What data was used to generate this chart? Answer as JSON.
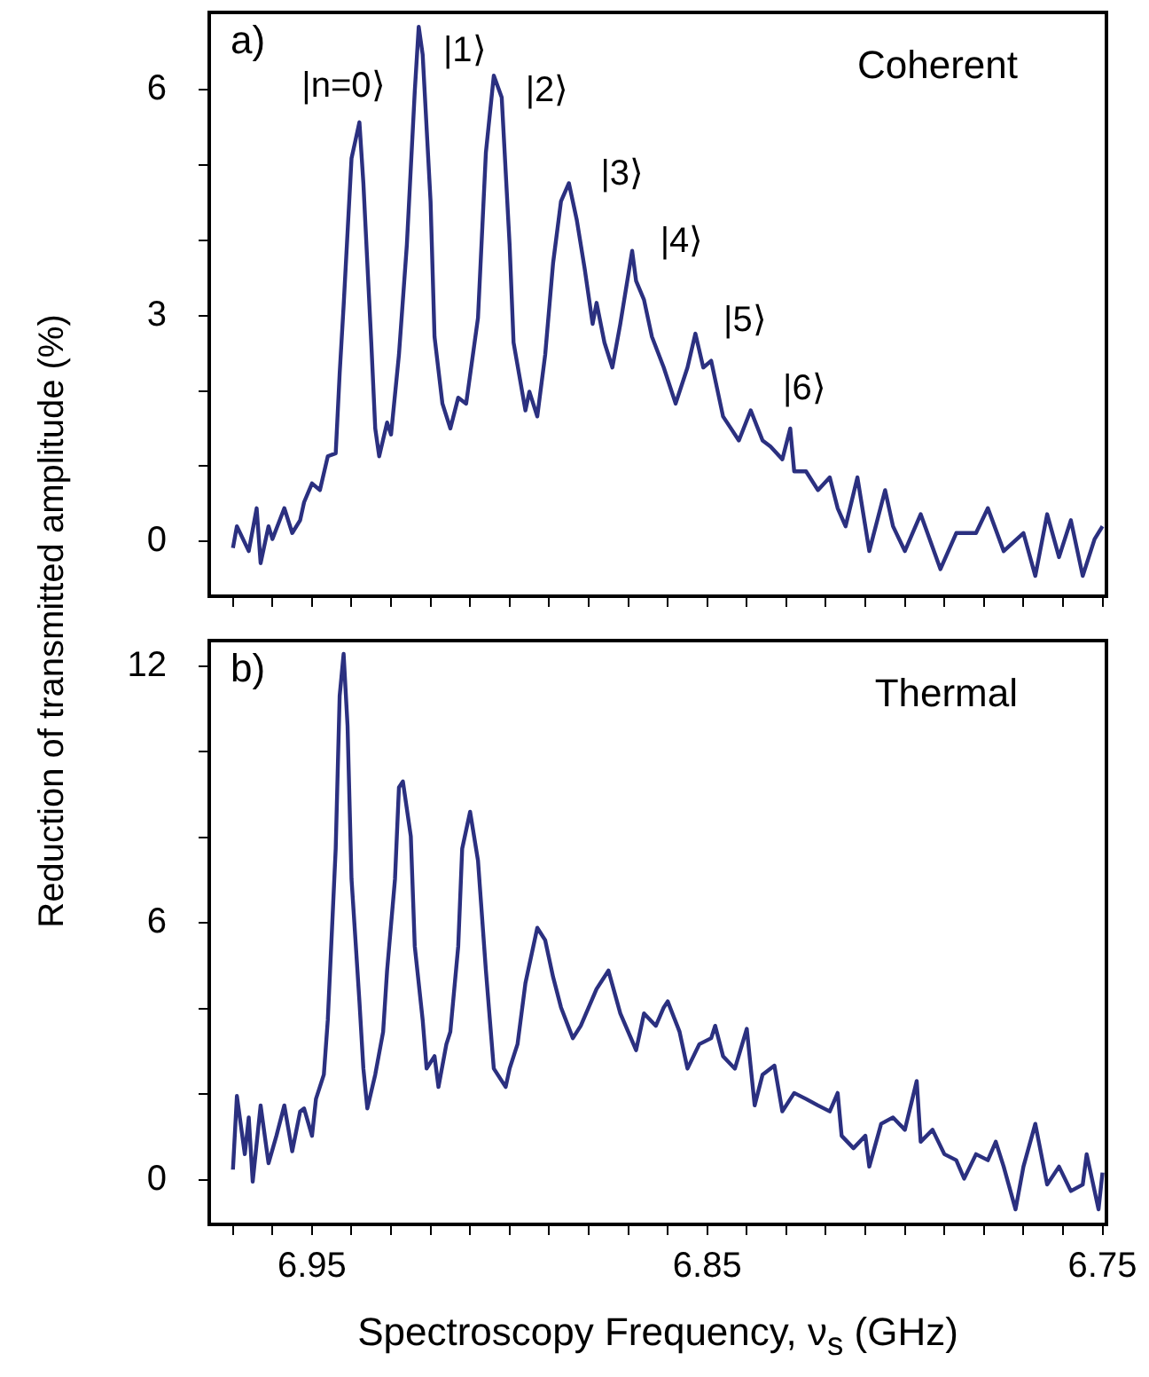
{
  "chart_data": [
    {
      "type": "line",
      "title": "Coherent",
      "ylabel": "Reduction of transmitted amplitude (%)",
      "xlim": [
        6.976,
        6.749
      ],
      "ylim": [
        -0.73,
        7.03
      ],
      "tick_labels": "y",
      "grid": false,
      "xticks": [
        {
          "value": 6.97,
          "label": null
        },
        {
          "value": 6.96,
          "label": null
        },
        {
          "value": 6.95,
          "label": null
        },
        {
          "value": 6.94,
          "label": null
        },
        {
          "value": 6.93,
          "label": null
        },
        {
          "value": 6.92,
          "label": null
        },
        {
          "value": 6.91,
          "label": null
        },
        {
          "value": 6.9,
          "label": null
        },
        {
          "value": 6.89,
          "label": null
        },
        {
          "value": 6.88,
          "label": null
        },
        {
          "value": 6.87,
          "label": null
        },
        {
          "value": 6.86,
          "label": null
        },
        {
          "value": 6.85,
          "label": null
        },
        {
          "value": 6.84,
          "label": null
        },
        {
          "value": 6.83,
          "label": null
        },
        {
          "value": 6.82,
          "label": null
        },
        {
          "value": 6.81,
          "label": null
        },
        {
          "value": 6.8,
          "label": null
        },
        {
          "value": 6.79,
          "label": null
        },
        {
          "value": 6.78,
          "label": null
        },
        {
          "value": 6.77,
          "label": null
        },
        {
          "value": 6.76,
          "label": null
        },
        {
          "value": 6.75,
          "label": null
        }
      ],
      "yticks": [
        0,
        {
          "value": 1,
          "label": null
        },
        {
          "value": 2,
          "label": null
        },
        3,
        {
          "value": 4,
          "label": null
        },
        {
          "value": 5,
          "label": null
        },
        6
      ],
      "annotations": [
        "a)",
        {
          "text": "|n=0⟩",
          "x": 6.938,
          "y": 5.57
        },
        {
          "text": "|1⟩",
          "x": 6.923,
          "y": 6.84
        },
        {
          "text": "|2⟩",
          "x": 6.904,
          "y": 6.19
        },
        {
          "text": "|3⟩",
          "x": 6.885,
          "y": 4.76
        },
        {
          "text": "|4⟩",
          "x": 6.869,
          "y": 3.86
        },
        {
          "text": "|5⟩",
          "x": 6.853,
          "y": 2.76
        },
        {
          "text": "|6⟩",
          "x": 6.829,
          "y": 1.5
        }
      ],
      "series": [
        {
          "color": "#2b3080",
          "x": [
            6.97,
            6.969,
            6.966,
            6.964,
            6.963,
            6.961,
            6.96,
            6.957,
            6.955,
            6.953,
            6.952,
            6.95,
            6.948,
            6.946,
            6.944,
            6.943,
            6.942,
            6.94,
            6.939,
            6.938,
            6.937,
            6.935,
            6.934,
            6.933,
            6.931,
            6.93,
            6.928,
            6.926,
            6.924,
            6.923,
            6.922,
            6.92,
            6.919,
            6.917,
            6.915,
            6.913,
            6.911,
            6.908,
            6.906,
            6.904,
            6.902,
            6.9,
            6.899,
            6.896,
            6.895,
            6.893,
            6.891,
            6.889,
            6.887,
            6.885,
            6.883,
            6.881,
            6.879,
            6.878,
            6.876,
            6.874,
            6.872,
            6.869,
            6.868,
            6.866,
            6.864,
            6.861,
            6.858,
            6.855,
            6.853,
            6.851,
            6.849,
            6.846,
            6.844,
            6.842,
            6.839,
            6.836,
            6.834,
            6.831,
            6.829,
            6.828,
            6.825,
            6.822,
            6.819,
            6.817,
            6.815,
            6.812,
            6.809,
            6.805,
            6.803,
            6.8,
            6.796,
            6.791,
            6.787,
            6.782,
            6.779,
            6.775,
            6.77,
            6.767,
            6.764,
            6.761,
            6.758,
            6.755,
            6.752,
            6.75
          ],
          "values": [
            -0.09,
            0.2,
            -0.13,
            0.44,
            -0.29,
            0.2,
            0.03,
            0.44,
            0.11,
            0.28,
            0.52,
            0.77,
            0.68,
            1.13,
            1.17,
            2.23,
            3.13,
            5.09,
            5.33,
            5.57,
            4.76,
            2.64,
            1.5,
            1.13,
            1.58,
            1.42,
            2.48,
            3.94,
            5.98,
            6.84,
            6.47,
            4.52,
            2.72,
            1.83,
            1.5,
            1.91,
            1.83,
            2.97,
            5.17,
            6.19,
            5.9,
            3.94,
            2.64,
            1.74,
            1.99,
            1.66,
            2.48,
            3.7,
            4.52,
            4.76,
            4.27,
            3.62,
            2.89,
            3.17,
            2.64,
            2.31,
            2.89,
            3.86,
            3.46,
            3.21,
            2.72,
            2.31,
            1.83,
            2.31,
            2.76,
            2.31,
            2.4,
            1.66,
            1.5,
            1.34,
            1.74,
            1.34,
            1.26,
            1.09,
            1.5,
            0.93,
            0.93,
            0.68,
            0.85,
            0.44,
            0.2,
            0.85,
            -0.13,
            0.68,
            0.2,
            -0.13,
            0.36,
            -0.37,
            0.11,
            0.11,
            0.44,
            -0.13,
            0.11,
            -0.46,
            0.36,
            -0.21,
            0.28,
            -0.46,
            0.03,
            0.2
          ]
        }
      ]
    },
    {
      "type": "line",
      "title": "Thermal",
      "xlabel": "Spectroscopy Frequency, ν$_{s}$ (GHz)",
      "xlim": [
        6.976,
        6.749
      ],
      "ylim": [
        -1.04,
        12.6
      ],
      "grid": false,
      "xticks": [
        {
          "value": 6.97,
          "label": null
        },
        {
          "value": 6.96,
          "label": null
        },
        6.95,
        {
          "value": 6.94,
          "label": null
        },
        {
          "value": 6.93,
          "label": null
        },
        {
          "value": 6.92,
          "label": null
        },
        {
          "value": 6.91,
          "label": null
        },
        {
          "value": 6.9,
          "label": null
        },
        {
          "value": 6.89,
          "label": null
        },
        {
          "value": 6.88,
          "label": null
        },
        {
          "value": 6.87,
          "label": null
        },
        {
          "value": 6.86,
          "label": null
        },
        6.85,
        {
          "value": 6.84,
          "label": null
        },
        {
          "value": 6.83,
          "label": null
        },
        {
          "value": 6.82,
          "label": null
        },
        {
          "value": 6.81,
          "label": null
        },
        {
          "value": 6.8,
          "label": null
        },
        {
          "value": 6.79,
          "label": null
        },
        {
          "value": 6.78,
          "label": null
        },
        {
          "value": 6.77,
          "label": null
        },
        {
          "value": 6.76,
          "label": null
        },
        6.75
      ],
      "yticks": [
        0,
        {
          "value": 2,
          "label": null
        },
        {
          "value": 4,
          "label": null
        },
        6,
        {
          "value": 8,
          "label": null
        },
        {
          "value": 10,
          "label": null
        },
        12
      ],
      "annotations": [
        "b)"
      ],
      "series": [
        {
          "color": "#2b3080",
          "x": [
            6.97,
            6.969,
            6.967,
            6.966,
            6.965,
            6.963,
            6.961,
            6.959,
            6.957,
            6.955,
            6.953,
            6.952,
            6.95,
            6.949,
            6.947,
            6.946,
            6.944,
            6.943,
            6.942,
            6.941,
            6.94,
            6.938,
            6.937,
            6.936,
            6.934,
            6.932,
            6.931,
            6.929,
            6.928,
            6.927,
            6.925,
            6.924,
            6.922,
            6.921,
            6.919,
            6.918,
            6.916,
            6.915,
            6.913,
            6.912,
            6.91,
            6.908,
            6.906,
            6.904,
            6.901,
            6.9,
            6.898,
            6.896,
            6.893,
            6.891,
            6.889,
            6.887,
            6.884,
            6.882,
            6.88,
            6.878,
            6.875,
            6.872,
            6.87,
            6.868,
            6.866,
            6.863,
            6.861,
            6.86,
            6.857,
            6.855,
            6.852,
            6.849,
            6.848,
            6.846,
            6.843,
            6.84,
            6.838,
            6.836,
            6.833,
            6.831,
            6.828,
            6.825,
            6.822,
            6.819,
            6.817,
            6.816,
            6.813,
            6.81,
            6.809,
            6.806,
            6.803,
            6.8,
            6.797,
            6.796,
            6.793,
            6.79,
            6.787,
            6.785,
            6.782,
            6.779,
            6.777,
            6.775,
            6.772,
            6.77,
            6.767,
            6.764,
            6.761,
            6.758,
            6.755,
            6.754,
            6.751,
            6.75
          ],
          "values": [
            0.24,
            1.96,
            0.6,
            1.46,
            -0.04,
            1.74,
            0.39,
            1.03,
            1.74,
            0.67,
            1.6,
            1.67,
            1.03,
            1.89,
            2.46,
            3.74,
            7.74,
            11.31,
            12.29,
            10.6,
            7.03,
            4.17,
            2.6,
            1.67,
            2.46,
            3.46,
            4.89,
            7.03,
            9.17,
            9.31,
            8.03,
            5.46,
            3.74,
            2.6,
            2.89,
            2.17,
            3.17,
            3.46,
            5.46,
            7.74,
            8.6,
            7.46,
            4.89,
            2.6,
            2.17,
            2.6,
            3.17,
            4.6,
            5.89,
            5.6,
            4.74,
            4.03,
            3.31,
            3.6,
            4.03,
            4.46,
            4.89,
            3.89,
            3.46,
            3.03,
            3.89,
            3.6,
            4.03,
            4.17,
            3.46,
            2.6,
            3.17,
            3.31,
            3.6,
            2.89,
            2.6,
            3.53,
            1.74,
            2.46,
            2.67,
            1.6,
            2.03,
            1.89,
            1.74,
            1.6,
            2.03,
            1.03,
            0.74,
            1.03,
            0.31,
            1.31,
            1.46,
            1.17,
            2.31,
            0.89,
            1.17,
            0.6,
            0.46,
            0.03,
            0.6,
            0.46,
            0.89,
            0.31,
            -0.69,
            0.31,
            1.31,
            -0.11,
            0.31,
            -0.26,
            -0.11,
            0.6,
            -0.69,
            0.17
          ]
        }
      ]
    }
  ]
}
